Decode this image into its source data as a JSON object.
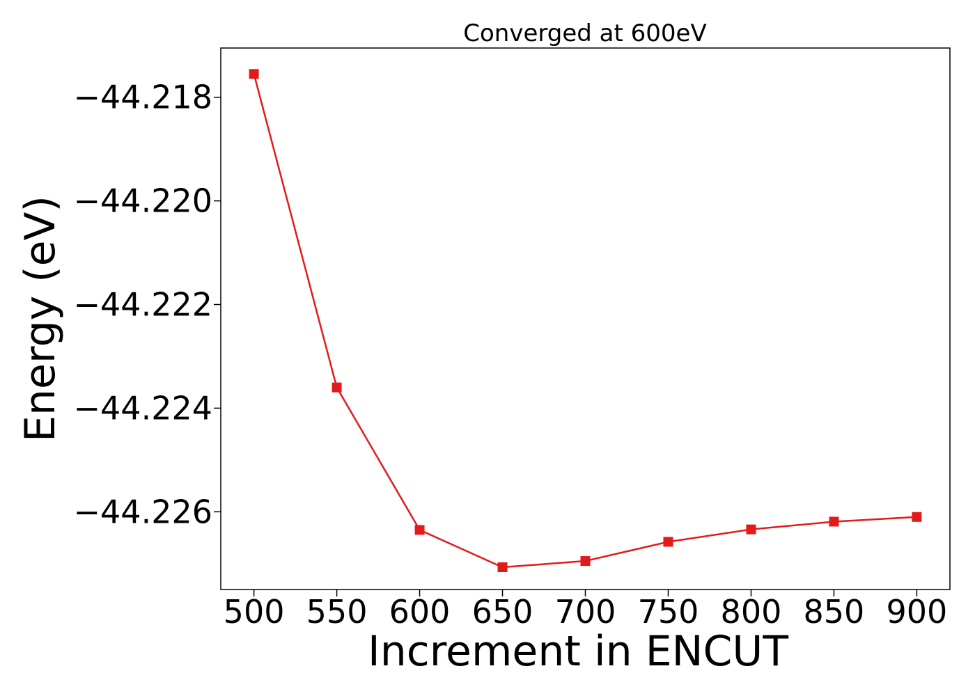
{
  "chart_data": {
    "type": "line",
    "title": "Converged at 600eV",
    "xlabel": "Increment in ENCUT",
    "ylabel": "Energy (eV)",
    "x": [
      500,
      550,
      600,
      650,
      700,
      750,
      800,
      850,
      900
    ],
    "series": [
      {
        "color": "#e31a1c",
        "marker": "square",
        "values": [
          -44.21755,
          -44.2236,
          -44.22635,
          -44.22707,
          -44.22695,
          -44.22658,
          -44.22634,
          -44.22619,
          -44.2261
        ]
      }
    ],
    "xlim": [
      480,
      920
    ],
    "ylim": [
      -44.2275,
      -44.21705
    ],
    "xticks": [
      500,
      550,
      600,
      650,
      700,
      750,
      800,
      850,
      900
    ],
    "xtick_labels": [
      "500",
      "550",
      "600",
      "650",
      "700",
      "750",
      "800",
      "850",
      "900"
    ],
    "yticks": [
      -44.218,
      -44.22,
      -44.222,
      -44.224,
      -44.226
    ],
    "ytick_labels": [
      "−44.218",
      "−44.220",
      "−44.222",
      "−44.224",
      "−44.226"
    ],
    "grid": false,
    "legend": false
  }
}
